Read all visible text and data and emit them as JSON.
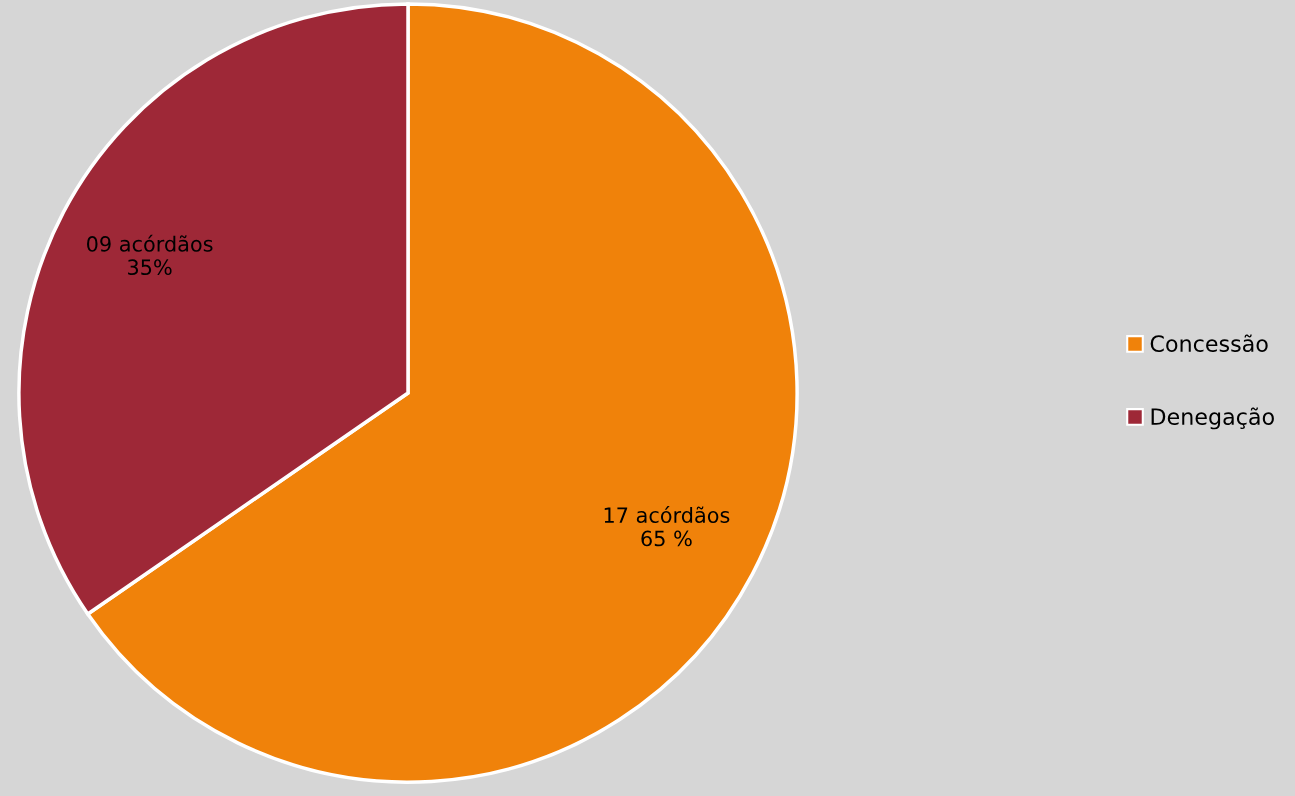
{
  "chart_data": {
    "type": "pie",
    "categories": [
      "Concessão",
      "Denegação"
    ],
    "values": [
      17,
      9
    ],
    "colors": [
      "#f0820a",
      "#9e2837"
    ],
    "value_labels": [
      "17 acórdãos\n65 %",
      "09 acórdãos\n35%"
    ],
    "legend": "right"
  }
}
